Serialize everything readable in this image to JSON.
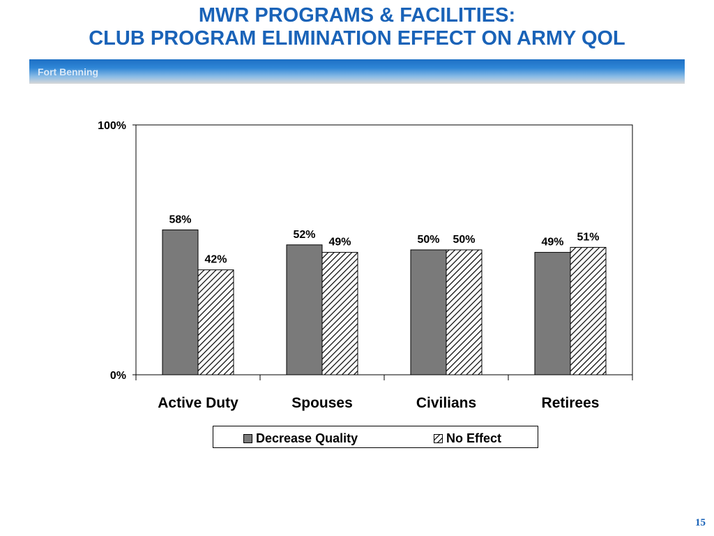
{
  "header": {
    "title_line1": "MWR PROGRAMS & FACILITIES:",
    "title_line2": "CLUB PROGRAM ELIMINATION EFFECT ON ARMY QOL",
    "subtitle": "Fort Benning"
  },
  "page_number": "15",
  "colors": {
    "title": "#1a63b8",
    "decrease_quality": "#7a7a7a",
    "no_effect_hatch": "#000000"
  },
  "chart_data": {
    "type": "bar",
    "categories": [
      "Active Duty",
      "Spouses",
      "Civilians",
      "Retirees"
    ],
    "series": [
      {
        "name": "Decrease Quality",
        "values": [
          58,
          52,
          50,
          49
        ],
        "labels": [
          "58%",
          "52%",
          "50%",
          "49%"
        ],
        "pattern": "solid-gray"
      },
      {
        "name": "No Effect",
        "values": [
          42,
          49,
          50,
          51
        ],
        "labels": [
          "42%",
          "49%",
          "50%",
          "51%"
        ],
        "pattern": "diagonal-hatch"
      }
    ],
    "ylim": [
      0,
      100
    ],
    "ytick_labels": [
      "0%",
      "100%"
    ],
    "xlabel": "",
    "ylabel": "",
    "grid": false,
    "legend_position": "bottom"
  }
}
